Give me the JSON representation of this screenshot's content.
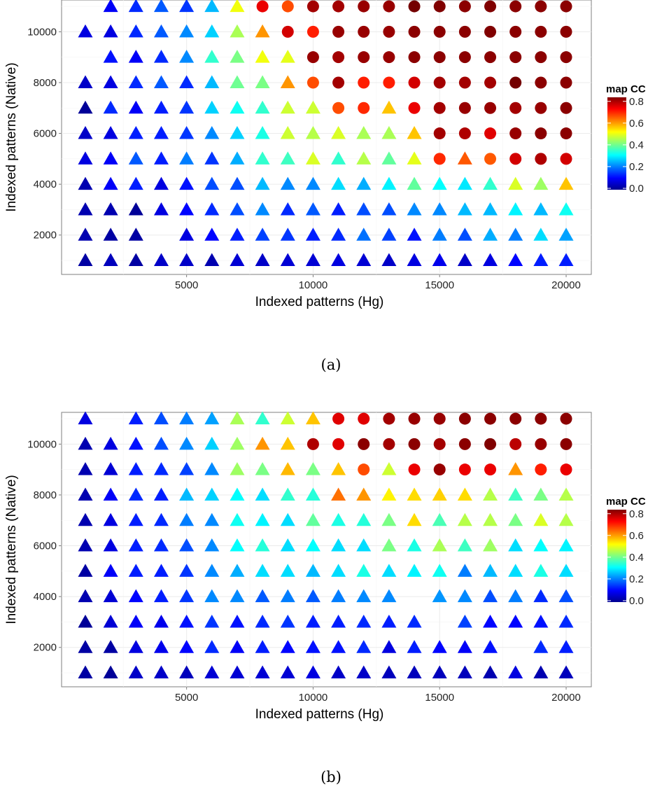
{
  "chart_data": [
    {
      "type": "scatter",
      "caption": "(a)",
      "xlabel": "Indexed patterns (Hg)",
      "ylabel": "Indexed patterns (Native)",
      "xticks": [
        5000,
        10000,
        15000,
        20000
      ],
      "yticks": [
        2000,
        4000,
        6000,
        8000,
        10000
      ],
      "xlim": [
        60,
        20995
      ],
      "ylim": [
        450,
        11250
      ],
      "grid": true,
      "x": [
        1000,
        2000,
        3000,
        4000,
        5000,
        6000,
        7000,
        8000,
        9000,
        10000,
        11000,
        12000,
        13000,
        14000,
        15000,
        16000,
        17000,
        18000,
        19000,
        20000
      ],
      "color_legend": {
        "title": "map CC",
        "ticks": [
          0.0,
          0.2,
          0.4,
          0.6,
          0.8
        ],
        "range": [
          0,
          0.85
        ],
        "colormap": "jet",
        "placement": "right"
      },
      "shape_key": {
        "T": "triangle",
        "C": "circle",
        "-": "missing"
      },
      "rows": [
        {
          "y": 11000,
          "shape": "-TTTTTTCCCCCCCCCCCCC",
          "cc": [
            null,
            0.1,
            0.14,
            0.18,
            0.15,
            0.26,
            0.52,
            0.76,
            0.68,
            0.82,
            0.82,
            0.83,
            0.83,
            0.86,
            0.85,
            0.84,
            0.85,
            0.84,
            0.84,
            0.84
          ]
        },
        {
          "y": 10000,
          "shape": "TTTTTTTTCCCCCCCCCCCC",
          "cc": [
            0.08,
            0.08,
            0.14,
            0.18,
            0.22,
            0.28,
            0.46,
            0.62,
            0.78,
            0.72,
            0.83,
            0.83,
            0.83,
            0.84,
            0.84,
            0.84,
            0.85,
            0.84,
            0.84,
            0.84
          ]
        },
        {
          "y": 9000,
          "shape": "-TTTTTTTTCCCCCCCCCCC",
          "cc": [
            null,
            0.12,
            0.1,
            0.14,
            0.22,
            0.36,
            0.42,
            0.52,
            0.51,
            0.83,
            0.82,
            0.83,
            0.83,
            0.84,
            0.84,
            0.84,
            0.84,
            0.84,
            0.84,
            0.84
          ]
        },
        {
          "y": 8000,
          "shape": "TTTTTTTTTCCCCCCCCCCC",
          "cc": [
            0.06,
            0.08,
            0.14,
            0.18,
            0.14,
            0.26,
            0.41,
            0.42,
            0.62,
            0.68,
            0.82,
            0.72,
            0.72,
            0.78,
            0.82,
            0.82,
            0.82,
            0.86,
            0.84,
            0.84
          ]
        },
        {
          "y": 7000,
          "shape": "TTTTTTTTTTCCTCCCCCCC",
          "cc": [
            0.02,
            0.14,
            0.1,
            0.13,
            0.15,
            0.28,
            0.33,
            0.36,
            0.49,
            0.49,
            0.68,
            0.71,
            0.58,
            0.76,
            0.82,
            0.83,
            0.83,
            0.82,
            0.83,
            0.84
          ]
        },
        {
          "y": 6000,
          "shape": "TTTTTTTTTTTTTTCCCCCC",
          "cc": [
            0.06,
            0.08,
            0.13,
            0.13,
            0.15,
            0.22,
            0.28,
            0.34,
            0.49,
            0.47,
            0.5,
            0.46,
            0.46,
            0.58,
            0.82,
            0.81,
            0.77,
            0.83,
            0.84,
            0.84
          ]
        },
        {
          "y": 5000,
          "shape": "TTTTTTTTTTTTTTCTCCCC",
          "cc": [
            0.08,
            0.1,
            0.18,
            0.13,
            0.21,
            0.15,
            0.25,
            0.36,
            0.37,
            0.5,
            0.36,
            0.47,
            0.4,
            0.51,
            0.71,
            0.67,
            0.67,
            0.78,
            0.81,
            0.78
          ]
        },
        {
          "y": 4000,
          "shape": "TTTTTTTTTTTTTTTTTTTT",
          "cc": [
            0.04,
            0.1,
            0.13,
            0.08,
            0.12,
            0.17,
            0.17,
            0.26,
            0.22,
            0.22,
            0.29,
            0.25,
            0.31,
            0.4,
            0.32,
            0.3,
            0.36,
            0.5,
            0.45,
            0.58
          ]
        },
        {
          "y": 3000,
          "shape": "TTTTTTTTTTTTTTTTTTTT",
          "cc": [
            0.04,
            0.04,
            0.02,
            0.08,
            0.11,
            0.14,
            0.17,
            0.22,
            0.14,
            0.18,
            0.13,
            0.17,
            0.17,
            0.22,
            0.22,
            0.26,
            0.26,
            0.31,
            0.26,
            0.33
          ]
        },
        {
          "y": 2000,
          "shape": "TTT-TTTTTTTTTTTTTTTT",
          "cc": [
            0.04,
            0.03,
            0.03,
            null,
            0.08,
            0.11,
            0.13,
            0.16,
            0.15,
            0.13,
            0.14,
            0.2,
            0.16,
            0.12,
            0.21,
            0.17,
            0.25,
            0.21,
            0.29,
            0.24
          ]
        },
        {
          "y": 1000,
          "shape": "TTTTTTTTTTTTTTTTTTTT",
          "cc": [
            0.03,
            0.05,
            0.03,
            0.06,
            0.06,
            0.04,
            0.07,
            0.06,
            0.07,
            0.07,
            0.08,
            0.07,
            0.06,
            0.08,
            0.09,
            0.06,
            0.08,
            0.11,
            0.13,
            0.13
          ]
        }
      ]
    },
    {
      "type": "scatter",
      "caption": "(b)",
      "xlabel": "Indexed patterns (Hg)",
      "ylabel": "Indexed patterns (Native)",
      "xticks": [
        5000,
        10000,
        15000,
        20000
      ],
      "yticks": [
        2000,
        4000,
        6000,
        8000,
        10000
      ],
      "xlim": [
        60,
        20995
      ],
      "ylim": [
        450,
        11250
      ],
      "grid": true,
      "x": [
        1000,
        2000,
        3000,
        4000,
        5000,
        6000,
        7000,
        8000,
        9000,
        10000,
        11000,
        12000,
        13000,
        14000,
        15000,
        16000,
        17000,
        18000,
        19000,
        20000
      ],
      "color_legend": {
        "title": "map CC",
        "ticks": [
          0.0,
          0.2,
          0.4,
          0.6,
          0.8
        ],
        "range": [
          0,
          0.85
        ],
        "colormap": "jet",
        "placement": "right"
      },
      "shape_key": {
        "T": "triangle",
        "C": "circle",
        "-": "missing"
      },
      "rows": [
        {
          "y": 11000,
          "shape": "T-TTTTTTTTCCCCCCCCCC",
          "cc": [
            0.08,
            null,
            0.13,
            0.17,
            0.21,
            0.24,
            0.46,
            0.36,
            0.49,
            0.58,
            0.77,
            0.77,
            0.82,
            0.83,
            0.83,
            0.84,
            0.84,
            0.84,
            0.84,
            0.84
          ]
        },
        {
          "y": 10000,
          "shape": "TTTTTTTTTCCCCCCCCCCC",
          "cc": [
            0.04,
            0.08,
            0.12,
            0.17,
            0.22,
            0.28,
            0.45,
            0.62,
            0.58,
            0.81,
            0.77,
            0.84,
            0.82,
            0.84,
            0.82,
            0.84,
            0.85,
            0.8,
            0.83,
            0.84
          ]
        },
        {
          "y": 9000,
          "shape": "TTTTTTTTTTTCTCCCCTCC",
          "cc": [
            0.04,
            0.07,
            0.13,
            0.14,
            0.16,
            0.22,
            0.45,
            0.42,
            0.59,
            0.42,
            0.58,
            0.68,
            0.49,
            0.76,
            0.83,
            0.76,
            0.76,
            0.62,
            0.72,
            0.76
          ]
        },
        {
          "y": 8000,
          "shape": "TTTTTTTTTTTTTTTTTTTT",
          "cc": [
            0.04,
            0.1,
            0.14,
            0.13,
            0.26,
            0.28,
            0.32,
            0.29,
            0.36,
            0.35,
            0.65,
            0.62,
            0.54,
            0.56,
            0.57,
            0.56,
            0.47,
            0.37,
            0.42,
            0.47
          ]
        },
        {
          "y": 7000,
          "shape": "TTTTTTTTTTTTTTTTTTTT",
          "cc": [
            0.04,
            0.08,
            0.13,
            0.14,
            0.21,
            0.22,
            0.33,
            0.31,
            0.29,
            0.4,
            0.34,
            0.35,
            0.42,
            0.56,
            0.38,
            0.47,
            0.47,
            0.42,
            0.5,
            0.47
          ]
        },
        {
          "y": 6000,
          "shape": "TTTTTTTTTTTTTTTTTTTT",
          "cc": [
            0.04,
            0.08,
            0.13,
            0.14,
            0.17,
            0.22,
            0.32,
            0.35,
            0.29,
            0.32,
            0.29,
            0.29,
            0.42,
            0.34,
            0.46,
            0.37,
            0.45,
            0.29,
            0.32,
            0.31
          ]
        },
        {
          "y": 5000,
          "shape": "TTTTTTTTTTTTTTTTTTTT",
          "cc": [
            0.03,
            0.1,
            0.13,
            0.13,
            0.15,
            0.22,
            0.25,
            0.29,
            0.29,
            0.26,
            0.29,
            0.34,
            0.29,
            0.31,
            0.33,
            0.21,
            0.26,
            0.29,
            0.34,
            0.29
          ]
        },
        {
          "y": 4000,
          "shape": "TTTTTTTTTTTTT-TTTTTT",
          "cc": [
            0.04,
            0.07,
            0.11,
            0.13,
            0.15,
            0.22,
            0.22,
            0.18,
            0.21,
            0.18,
            0.21,
            0.22,
            0.22,
            null,
            0.23,
            0.22,
            0.17,
            0.21,
            0.14,
            0.17
          ]
        },
        {
          "y": 3000,
          "shape": "TTTTTTTTTTTTTT-TTTTT",
          "cc": [
            0.02,
            0.07,
            0.1,
            0.09,
            0.12,
            0.15,
            0.12,
            0.14,
            0.15,
            0.13,
            0.13,
            0.14,
            0.13,
            0.14,
            null,
            0.16,
            0.11,
            0.11,
            0.12,
            0.14
          ]
        },
        {
          "y": 2000,
          "shape": "TTTTTTTTTTTTTTTTT-TT",
          "cc": [
            0.03,
            0.03,
            0.08,
            0.09,
            0.11,
            0.14,
            0.1,
            0.13,
            0.11,
            0.12,
            0.12,
            0.14,
            0.08,
            0.13,
            0.11,
            0.1,
            0.12,
            null,
            0.14,
            0.13
          ]
        },
        {
          "y": 1000,
          "shape": "TTTTTTTTTTTTTTTTTTTT",
          "cc": [
            0.03,
            0.02,
            0.06,
            0.06,
            0.05,
            0.07,
            0.07,
            0.07,
            0.07,
            0.08,
            0.06,
            0.06,
            0.05,
            0.05,
            0.05,
            0.05,
            0.04,
            0.08,
            0.04,
            0.05
          ]
        }
      ]
    }
  ]
}
